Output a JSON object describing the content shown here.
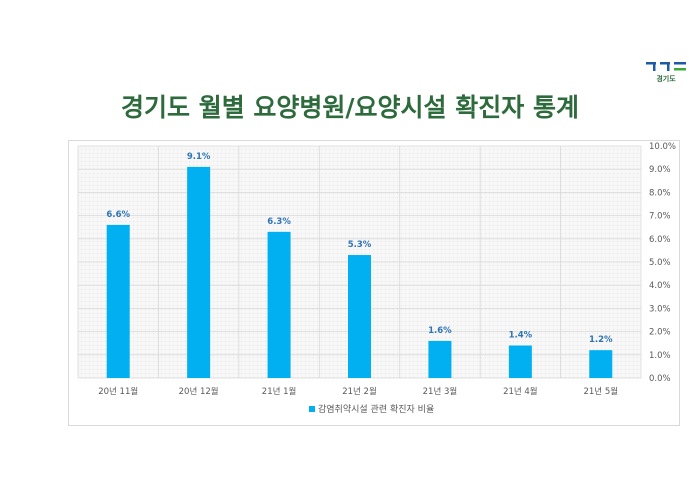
{
  "page": {
    "title": "경기도 월별 요양병원/요양시설 확진자 통계",
    "logo_text": "경기도"
  },
  "colors": {
    "title_green": "#2e6b3c",
    "bar": "#00b0f0",
    "logo_blue": "#1f5aa6",
    "logo_green": "#3aa935"
  },
  "chart_data": {
    "type": "bar",
    "categories": [
      "20년 11월",
      "20년 12월",
      "21년 1월",
      "21년 2월",
      "21년 3월",
      "21년 4월",
      "21년 5월"
    ],
    "series": [
      {
        "name": "감염취약시설 관련 확진자 비율",
        "values": [
          6.6,
          9.1,
          6.3,
          5.3,
          1.6,
          1.4,
          1.2
        ]
      }
    ],
    "data_labels": [
      "6.6%",
      "9.1%",
      "6.3%",
      "5.3%",
      "1.6%",
      "1.4%",
      "1.2%"
    ],
    "y_ticks": [
      "0.0%",
      "1.0%",
      "2.0%",
      "3.0%",
      "4.0%",
      "5.0%",
      "6.0%",
      "7.0%",
      "8.0%",
      "9.0%",
      "10.0%"
    ],
    "ylim": [
      0,
      10
    ],
    "y_axis_side": "right",
    "grid": true,
    "legend_position": "bottom"
  }
}
